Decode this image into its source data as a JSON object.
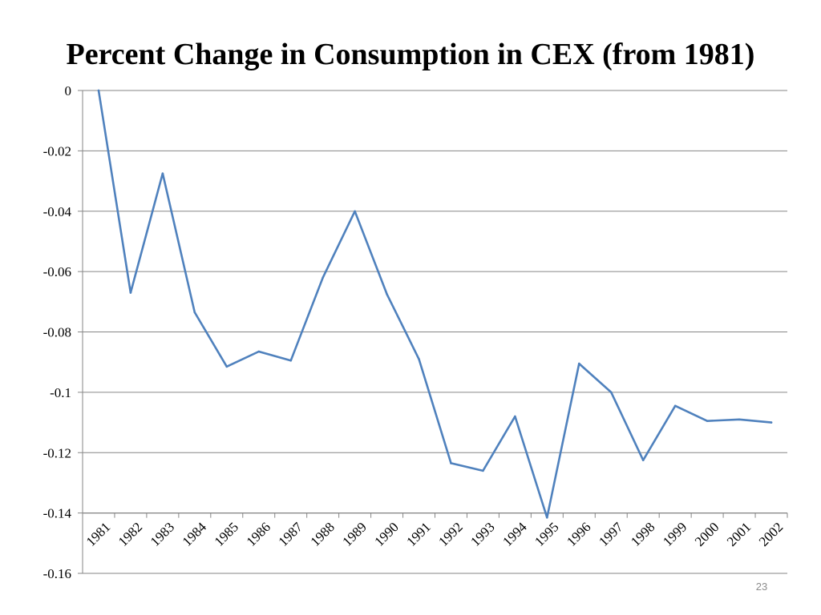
{
  "slide": {
    "title": "Percent Change in Consumption in CEX (from 1981)",
    "page_number": "23"
  },
  "colors": {
    "line": "#4f81bd",
    "grid": "#868686",
    "axis": "#868686",
    "text": "#000000"
  },
  "chart_data": {
    "type": "line",
    "title": "Percent Change in Consumption in CEX (from 1981)",
    "xlabel": "",
    "ylabel": "",
    "ylim": [
      -0.16,
      0
    ],
    "yticks": [
      0,
      -0.02,
      -0.04,
      -0.06,
      -0.08,
      -0.1,
      -0.12,
      -0.14,
      -0.16
    ],
    "ytick_labels": [
      "0",
      "-0.02",
      "-0.04",
      "-0.06",
      "-0.08",
      "-0.1",
      "-0.12",
      "-0.14",
      "-0.16"
    ],
    "x_axis_crosses_at": -0.14,
    "grid": true,
    "legend": "none",
    "categories": [
      "1981",
      "1982",
      "1983",
      "1984",
      "1985",
      "1986",
      "1987",
      "1988",
      "1989",
      "1990",
      "1991",
      "1992",
      "1993",
      "1994",
      "1995",
      "1996",
      "1997",
      "1998",
      "1999",
      "2000",
      "2001",
      "2002"
    ],
    "series": [
      {
        "values": [
          0,
          -0.067,
          -0.0275,
          -0.0735,
          -0.0915,
          -0.0865,
          -0.0895,
          -0.062,
          -0.04,
          -0.0675,
          -0.089,
          -0.1235,
          -0.126,
          -0.108,
          -0.1415,
          -0.0905,
          -0.1,
          -0.1225,
          -0.1045,
          -0.1095,
          -0.109,
          -0.11
        ]
      }
    ]
  }
}
